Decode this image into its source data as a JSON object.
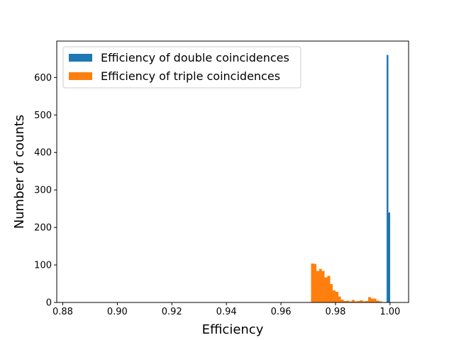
{
  "chart_data": {
    "type": "bar",
    "xlabel": "Efficiency",
    "ylabel": "Number of counts",
    "xlim": [
      0.8778,
      1.0068
    ],
    "ylim": [
      0,
      697
    ],
    "x_ticks": [
      0.88,
      0.9,
      0.92,
      0.94,
      0.96,
      0.98,
      1.0
    ],
    "x_tick_labels": [
      "0.88",
      "0.90",
      "0.92",
      "0.94",
      "0.96",
      "0.98",
      "1.00"
    ],
    "y_ticks": [
      0,
      100,
      200,
      300,
      400,
      500,
      600
    ],
    "y_tick_labels": [
      "0",
      "100",
      "200",
      "300",
      "400",
      "500",
      "600"
    ],
    "legend_position": "top-left",
    "series": [
      {
        "name": "Efficiency of double coincidences",
        "color": "#1f77b4",
        "bins": [
          {
            "x0": 0.9988,
            "x1": 0.9994,
            "count": 660
          },
          {
            "x0": 0.9994,
            "x1": 1.0,
            "count": 240
          }
        ]
      },
      {
        "name": "Efficiency of triple coincidences",
        "color": "#ff7f0e",
        "bins": [
          {
            "x0": 0.971,
            "x1": 0.972,
            "count": 104
          },
          {
            "x0": 0.972,
            "x1": 0.973,
            "count": 103
          },
          {
            "x0": 0.973,
            "x1": 0.974,
            "count": 84
          },
          {
            "x0": 0.974,
            "x1": 0.975,
            "count": 90
          },
          {
            "x0": 0.975,
            "x1": 0.976,
            "count": 84
          },
          {
            "x0": 0.976,
            "x1": 0.977,
            "count": 67
          },
          {
            "x0": 0.977,
            "x1": 0.978,
            "count": 71
          },
          {
            "x0": 0.978,
            "x1": 0.979,
            "count": 49
          },
          {
            "x0": 0.979,
            "x1": 0.98,
            "count": 32
          },
          {
            "x0": 0.98,
            "x1": 0.981,
            "count": 28
          },
          {
            "x0": 0.981,
            "x1": 0.982,
            "count": 16
          },
          {
            "x0": 0.982,
            "x1": 0.983,
            "count": 8
          },
          {
            "x0": 0.983,
            "x1": 0.984,
            "count": 4
          },
          {
            "x0": 0.984,
            "x1": 0.985,
            "count": 5
          },
          {
            "x0": 0.985,
            "x1": 0.986,
            "count": 3
          },
          {
            "x0": 0.986,
            "x1": 0.987,
            "count": 7
          },
          {
            "x0": 0.987,
            "x1": 0.988,
            "count": 3
          },
          {
            "x0": 0.988,
            "x1": 0.989,
            "count": 4
          },
          {
            "x0": 0.989,
            "x1": 0.99,
            "count": 6
          },
          {
            "x0": 0.99,
            "x1": 0.991,
            "count": 3
          },
          {
            "x0": 0.991,
            "x1": 0.992,
            "count": 4
          },
          {
            "x0": 0.992,
            "x1": 0.993,
            "count": 14
          },
          {
            "x0": 0.993,
            "x1": 0.994,
            "count": 10
          },
          {
            "x0": 0.994,
            "x1": 0.995,
            "count": 10
          },
          {
            "x0": 0.995,
            "x1": 0.996,
            "count": 5
          },
          {
            "x0": 0.996,
            "x1": 0.997,
            "count": 3
          }
        ]
      }
    ]
  }
}
